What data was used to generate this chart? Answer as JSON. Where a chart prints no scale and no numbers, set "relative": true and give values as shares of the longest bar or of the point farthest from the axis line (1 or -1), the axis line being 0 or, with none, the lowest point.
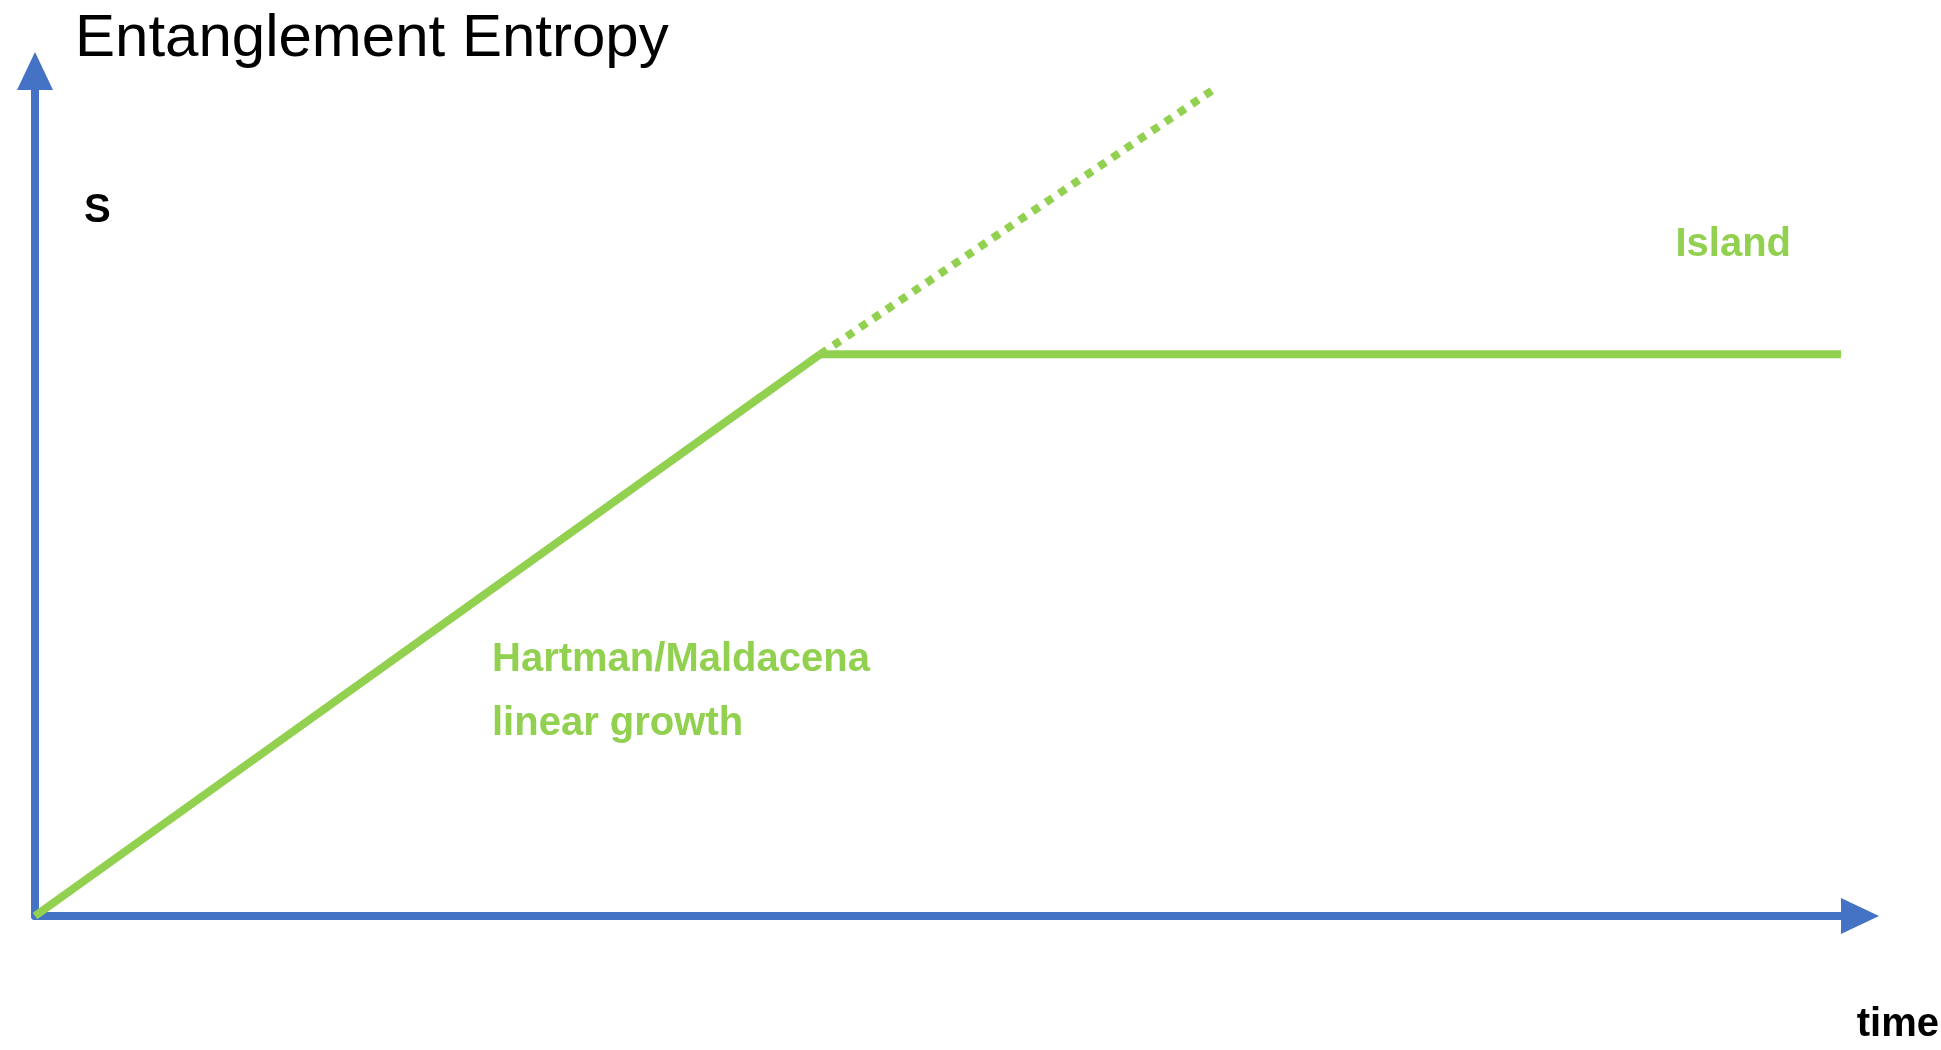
{
  "chart_data": {
    "type": "line",
    "title": "Entanglement Entropy",
    "xlabel": "time",
    "ylabel": "S",
    "relative": true,
    "categories": [
      null,
      null,
      null,
      null,
      null,
      null,
      null,
      null,
      null,
      null,
      null,
      null,
      null,
      null,
      null,
      null,
      null,
      null,
      null,
      null,
      null,
      null,
      null,
      null,
      null,
      null,
      null,
      null,
      null,
      null,
      null,
      null,
      null,
      null,
      null,
      null,
      null,
      null,
      null,
      null,
      null,
      null,
      null,
      null,
      null,
      null,
      null
    ],
    "series": [
      {
        "values": [
          0,
          null,
          null,
          null,
          null,
          null,
          null,
          null,
          null,
          null,
          null,
          null,
          null,
          null,
          null,
          null,
          null,
          null,
          null,
          null,
          0.68,
          null,
          null,
          null,
          null,
          null,
          null,
          null,
          null,
          null,
          null,
          null,
          null,
          null,
          null,
          null,
          null,
          null,
          null,
          null,
          null,
          null,
          null,
          null,
          null,
          null,
          null
        ],
        "color": "#92d050",
        "line_style": "solid"
      },
      {
        "values": [
          null,
          null,
          null,
          null,
          null,
          null,
          null,
          null,
          null,
          null,
          null,
          null,
          null,
          null,
          null,
          null,
          null,
          null,
          null,
          null,
          0.68,
          null,
          null,
          null,
          null,
          null,
          null,
          null,
          null,
          null,
          1,
          null,
          null,
          null,
          null,
          null,
          null,
          null,
          null,
          null,
          null,
          null,
          null,
          null,
          null,
          null,
          null
        ],
        "color": "#92d050",
        "line_style": "dotted"
      },
      {
        "values": [
          null,
          null,
          null,
          null,
          null,
          null,
          null,
          null,
          null,
          null,
          null,
          null,
          null,
          null,
          null,
          null,
          null,
          null,
          null,
          null,
          0.68,
          null,
          null,
          null,
          null,
          null,
          null,
          null,
          null,
          null,
          null,
          null,
          null,
          null,
          null,
          null,
          null,
          null,
          null,
          null,
          null,
          null,
          null,
          null,
          null,
          null,
          0.68
        ],
        "color": "#92d050",
        "line_style": "solid"
      }
    ],
    "annotations": [
      "Island",
      "Hartman/Maldacena\nlinear growth"
    ]
  }
}
